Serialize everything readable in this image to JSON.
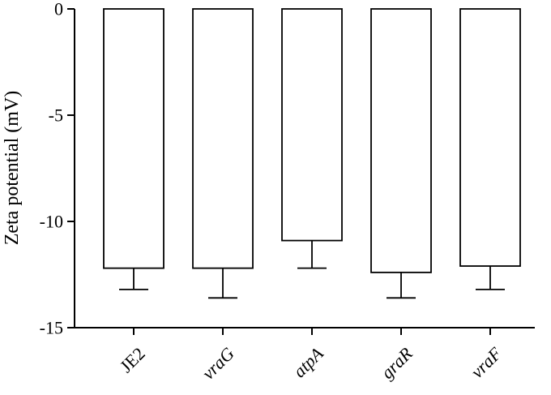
{
  "chart_data": {
    "type": "bar",
    "title": "",
    "xlabel": "",
    "ylabel": "Zeta potential (mV)",
    "categories": [
      "JE2",
      "vraG",
      "atpA",
      "graR",
      "vraF"
    ],
    "italic_categories": [
      false,
      true,
      true,
      true,
      true
    ],
    "values": [
      -12.2,
      -12.2,
      -10.9,
      -12.4,
      -12.1
    ],
    "errors": [
      1.0,
      1.4,
      1.3,
      1.2,
      1.1
    ],
    "ylim": [
      -15,
      0
    ],
    "yticks": [
      0,
      -5,
      -10,
      -15
    ],
    "grid": false,
    "legend": "none"
  }
}
